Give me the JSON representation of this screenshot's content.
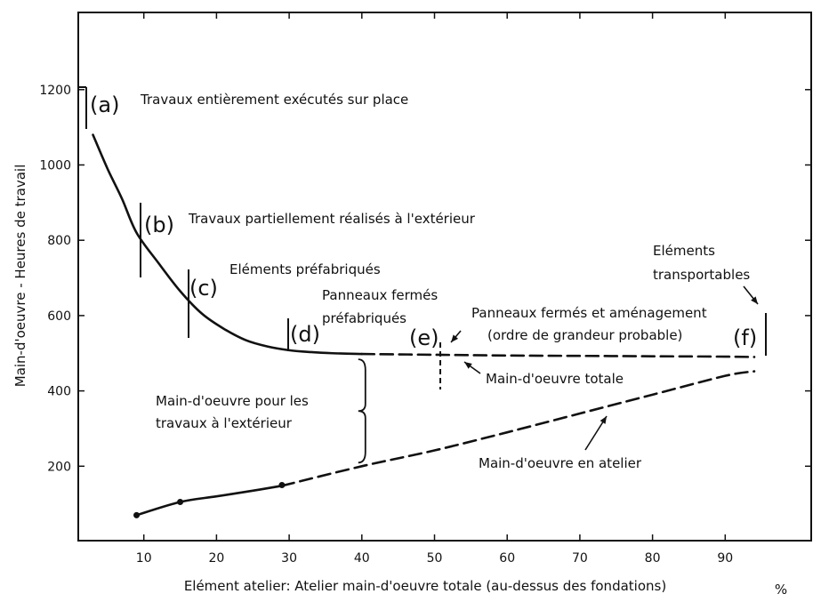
{
  "chart_data": {
    "type": "line",
    "xlabel": "Elément atelier: Atelier main-d'oeuvre totale (au-dessus des fondations)",
    "ylabel": "Main-d'oeuvre - Heures de travail",
    "x_unit_label": "%",
    "xlim": [
      0,
      96
    ],
    "ylim": [
      0,
      1400
    ],
    "x_ticks": [
      10,
      20,
      30,
      40,
      50,
      60,
      70,
      80,
      90
    ],
    "y_ticks": [
      200,
      400,
      600,
      800,
      1000,
      1200
    ],
    "series": [
      {
        "name": "Main-d'oeuvre totale",
        "style": "solid",
        "x": [
          3,
          5,
          7,
          9,
          12,
          15,
          18,
          21,
          24,
          27,
          30,
          33,
          36,
          40
        ],
        "y": [
          1080,
          990,
          910,
          820,
          740,
          665,
          605,
          565,
          535,
          518,
          508,
          503,
          500,
          498
        ]
      },
      {
        "name": "Main-d'oeuvre totale",
        "style": "dashed",
        "x": [
          40,
          50,
          60,
          70,
          80,
          90,
          94
        ],
        "y": [
          498,
          496,
          494,
          493,
          492,
          491,
          490
        ]
      },
      {
        "name": "Main-d'oeuvre en atelier",
        "style": "solid",
        "x": [
          9,
          15,
          20,
          25,
          29
        ],
        "y": [
          70,
          105,
          120,
          135,
          148
        ]
      },
      {
        "name": "Main-d'oeuvre en atelier",
        "style": "dashed",
        "x": [
          29,
          40,
          50,
          60,
          70,
          80,
          90,
          94
        ],
        "y": [
          148,
          200,
          242,
          290,
          340,
          390,
          440,
          452
        ]
      }
    ],
    "markers": [
      {
        "x": 9,
        "y": 70
      },
      {
        "x": 15,
        "y": 105
      },
      {
        "x": 29,
        "y": 150
      }
    ],
    "stages": [
      {
        "letter": "(a)",
        "label": "Travaux entièrement exécutés sur place",
        "label2": ""
      },
      {
        "letter": "(b)",
        "label": "Travaux partiellement réalisés à l'extérieur",
        "label2": ""
      },
      {
        "letter": "(c)",
        "label": "Eléments préfabriqués",
        "label2": ""
      },
      {
        "letter": "(d)",
        "label": "Panneaux fermés",
        "label2": "préfabriqués"
      },
      {
        "letter": "(e)",
        "label": "Panneaux fermés et aménagement",
        "label2": "(ordre de grandeur probable)"
      },
      {
        "letter": "(f)",
        "label": "Eléments",
        "label2": "transportables"
      }
    ],
    "annotations": [
      {
        "text": "Main-d'oeuvre pour les",
        "text2": "travaux à l'extérieur"
      },
      {
        "text": "Main-d'oeuvre totale",
        "text2": ""
      },
      {
        "text": "Main-d'oeuvre en atelier",
        "text2": ""
      }
    ],
    "grid": false
  }
}
